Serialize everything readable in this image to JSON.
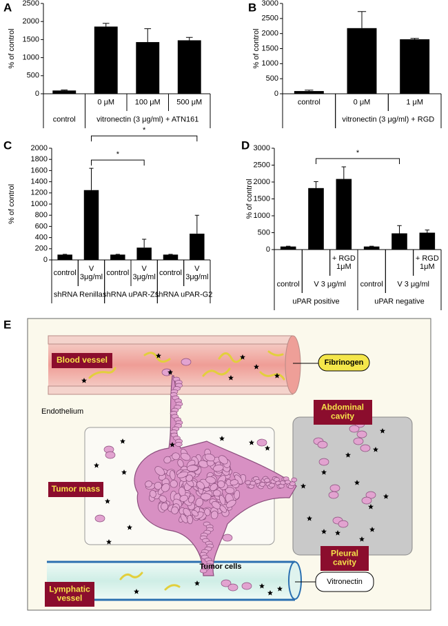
{
  "chart_data": [
    {
      "type": "bar",
      "panel": "A",
      "ylabel": "% of control",
      "ylim": [
        0,
        2500
      ],
      "yticks": [
        0,
        500,
        1000,
        1500,
        2000,
        2500
      ],
      "color": "#000000",
      "groups": [
        {
          "label": "control",
          "subgroups": [
            {
              "label": null,
              "categories": [
                null
              ],
              "values": [
                90
              ],
              "errors": [
                15
              ]
            }
          ]
        },
        {
          "label": "vitronectin (3 μg/ml) + ATN161",
          "subgroups": [
            {
              "label": null,
              "categories": [
                "0 μM",
                "100 μM",
                "500 μM"
              ],
              "values": [
                1860,
                1430,
                1480
              ],
              "errors": [
                90,
                370,
                80
              ]
            }
          ]
        }
      ]
    },
    {
      "type": "bar",
      "panel": "B",
      "ylabel": "% of control",
      "ylim": [
        0,
        3000
      ],
      "yticks": [
        0,
        500,
        1000,
        1500,
        2000,
        2500,
        3000
      ],
      "color": "#000000",
      "groups": [
        {
          "label": null,
          "subgroups": [
            {
              "label": null,
              "categories": [
                "control"
              ],
              "values": [
                90
              ],
              "errors": [
                30
              ]
            }
          ]
        },
        {
          "label": "vitronectin (3 μg/ml) + RGD",
          "subgroups": [
            {
              "label": null,
              "categories": [
                "0 μM",
                "1 μM"
              ],
              "values": [
                2180,
                1810
              ],
              "errors": [
                550,
                30
              ]
            }
          ]
        }
      ]
    },
    {
      "type": "bar",
      "panel": "C",
      "ylabel": "% of control",
      "ylim": [
        0,
        2000
      ],
      "yticks": [
        0,
        200,
        400,
        600,
        800,
        1000,
        1200,
        1400,
        1600,
        1800,
        2000
      ],
      "color": "#000000",
      "groups": [
        {
          "label": "shRNA Renilla",
          "subgroups": [
            {
              "label": null,
              "categories": [
                "control",
                "V\n3μg/ml"
              ],
              "values": [
                95,
                1250
              ],
              "errors": [
                5,
                390
              ]
            }
          ]
        },
        {
          "label": "shRNA uPAR-Z1",
          "subgroups": [
            {
              "label": null,
              "categories": [
                "control",
                "V\n3μg/ml"
              ],
              "values": [
                95,
                220
              ],
              "errors": [
                5,
                150
              ]
            }
          ]
        },
        {
          "label": "shRNA uPAR-G2",
          "subgroups": [
            {
              "label": null,
              "categories": [
                "control",
                "V\n3μg/ml"
              ],
              "values": [
                95,
                470
              ],
              "errors": [
                5,
                330
              ]
            }
          ]
        }
      ],
      "brackets": [
        {
          "from": 1,
          "to": 3,
          "label": "*"
        },
        {
          "from": 1,
          "to": 5,
          "label": "*"
        }
      ]
    },
    {
      "type": "bar",
      "panel": "D",
      "ylabel": "% of control",
      "ylim": [
        0,
        3000
      ],
      "yticks": [
        0,
        500,
        1000,
        1500,
        2000,
        2500,
        3000
      ],
      "color": "#000000",
      "groups": [
        {
          "label": "uPAR positive",
          "subgroups": [
            {
              "label": "control",
              "categories": [
                null
              ],
              "values": [
                90
              ],
              "errors": [
                10
              ]
            },
            {
              "label": "V 3 μg/ml",
              "categories": [
                null,
                "+ RGD\n1μM"
              ],
              "values": [
                1820,
                2090
              ],
              "errors": [
                190,
                360
              ]
            }
          ]
        },
        {
          "label": "uPAR negative",
          "subgroups": [
            {
              "label": "control",
              "categories": [
                null
              ],
              "values": [
                90
              ],
              "errors": [
                10
              ]
            },
            {
              "label": "V 3 μg/ml",
              "categories": [
                null,
                "+ RGD\n1μM"
              ],
              "values": [
                480,
                500
              ],
              "errors": [
                230,
                80
              ]
            }
          ]
        }
      ],
      "brackets": [
        {
          "from": 1,
          "to": 4,
          "label": "*"
        }
      ]
    }
  ],
  "diagram": {
    "panel": "E",
    "blood_vessel": "Blood vessel",
    "fibrinogen": "Fibrinogen",
    "endothelium": "Endothelium",
    "abdominal_cavity": "Abdominal\ncavity",
    "tumor_mass": "Tumor mass",
    "pleural_cavity": "Pleural\ncavity",
    "tumor_cells": "Tumor cells",
    "lymphatic_vessel": "Lymphatic\nvessel",
    "vitronectin": "Vitronectin"
  }
}
